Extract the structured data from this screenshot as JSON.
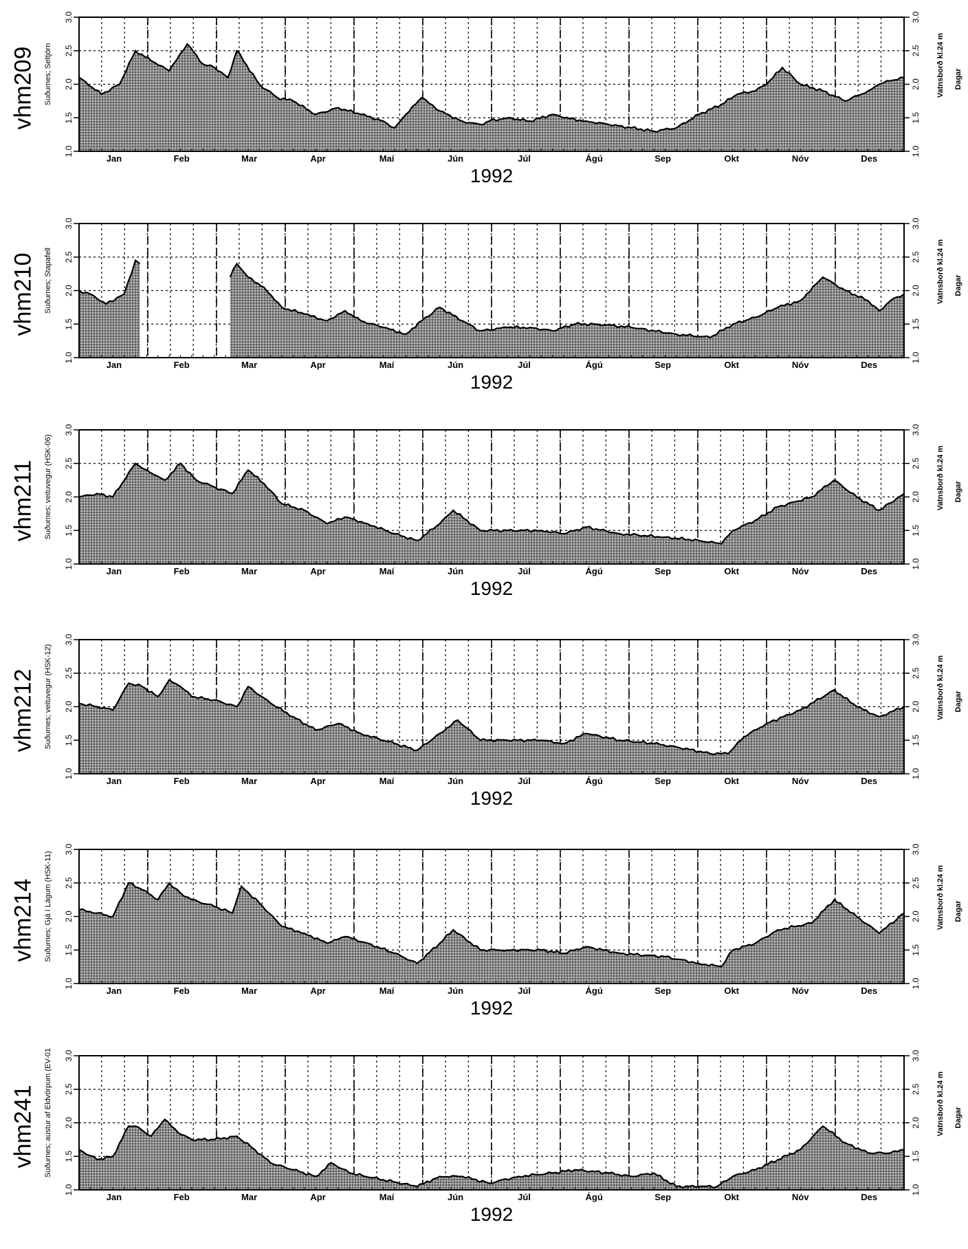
{
  "chart_data": [
    {
      "type": "area",
      "station": "vhm209",
      "ylabel": "Suðurnes; Seltjörn",
      "ylabel_right": "Vatnsborð kl.24 m",
      "xlabel_right": "Dagar",
      "year": "1992",
      "ylim": [
        1.0,
        3.0
      ],
      "yticks": [
        "1.0",
        "1.5",
        "2.0",
        "2.5",
        "3.0"
      ],
      "months": [
        "Jan",
        "Feb",
        "Mar",
        "Apr",
        "Maí",
        "Jún",
        "Júl",
        "Ágú",
        "Sep",
        "Okt",
        "Nóv",
        "Des"
      ],
      "grid": true,
      "series": [
        {
          "x": [
            0,
            10,
            18,
            25,
            32,
            40,
            48,
            55,
            60,
            66,
            70,
            80,
            88,
            95,
            105,
            115,
            125,
            135,
            140,
            145,
            152,
            160,
            170,
            178,
            182,
            190,
            200,
            210,
            215,
            225,
            235,
            245,
            255,
            265,
            275,
            285,
            292,
            300,
            305,
            312,
            320,
            330,
            340,
            350,
            355,
            360,
            366
          ],
          "y": [
            2.1,
            1.85,
            2.0,
            2.5,
            2.35,
            2.2,
            2.6,
            2.3,
            2.25,
            2.1,
            2.5,
            2.0,
            1.8,
            1.75,
            1.55,
            1.65,
            1.55,
            1.45,
            1.35,
            1.55,
            1.8,
            1.6,
            1.45,
            1.4,
            1.45,
            1.5,
            1.45,
            1.55,
            1.5,
            1.45,
            1.4,
            1.35,
            1.3,
            1.35,
            1.55,
            1.7,
            1.85,
            1.9,
            2.0,
            2.25,
            2.0,
            1.9,
            1.75,
            1.9,
            2.0,
            2.05,
            2.1
          ]
        }
      ],
      "gaps": []
    },
    {
      "type": "area",
      "station": "vhm210",
      "ylabel": "Suðurnes; Stapafell",
      "ylabel_right": "Vatnsborð kl.24 m",
      "xlabel_right": "Dagar",
      "year": "1992",
      "ylim": [
        1.0,
        3.0
      ],
      "yticks": [
        "1.0",
        "1.5",
        "2.0",
        "2.5",
        "3.0"
      ],
      "months": [
        "Jan",
        "Feb",
        "Mar",
        "Apr",
        "Maí",
        "Jún",
        "Júl",
        "Ágú",
        "Sep",
        "Okt",
        "Nóv",
        "Des"
      ],
      "grid": true,
      "series": [
        {
          "x": [
            0,
            5,
            12,
            20,
            25,
            27,
            67,
            70,
            75,
            82,
            90,
            100,
            110,
            118,
            125,
            135,
            145,
            152,
            160,
            170,
            178,
            190,
            200,
            210,
            220,
            230,
            245,
            265,
            280,
            290,
            300,
            310,
            320,
            330,
            340,
            350,
            355,
            360,
            366
          ],
          "y": [
            2.0,
            1.95,
            1.8,
            1.95,
            2.45,
            2.4,
            2.2,
            2.4,
            2.2,
            2.05,
            1.75,
            1.65,
            1.55,
            1.7,
            1.55,
            1.45,
            1.35,
            1.55,
            1.75,
            1.55,
            1.4,
            1.45,
            1.45,
            1.4,
            1.5,
            1.5,
            1.45,
            1.35,
            1.3,
            1.5,
            1.6,
            1.75,
            1.85,
            2.2,
            2.0,
            1.85,
            1.7,
            1.85,
            1.95
          ]
        }
      ],
      "gaps": [
        [
          28,
          66
        ]
      ]
    },
    {
      "type": "area",
      "station": "vhm211",
      "ylabel": "Suðurnes; veituvegur (HSK-06)",
      "ylabel_right": "Vatnsborð kl.24 m",
      "xlabel_right": "Dagar",
      "year": "1992",
      "ylim": [
        1.0,
        3.0
      ],
      "yticks": [
        "1.0",
        "1.5",
        "2.0",
        "2.5",
        "3.0"
      ],
      "months": [
        "Jan",
        "Feb",
        "Mar",
        "Apr",
        "Maí",
        "Jún",
        "Júl",
        "Ágú",
        "Sep",
        "Okt",
        "Nóv",
        "Des"
      ],
      "grid": true,
      "series": [
        {
          "x": [
            0,
            8,
            15,
            25,
            30,
            38,
            45,
            52,
            60,
            68,
            75,
            82,
            90,
            100,
            110,
            118,
            128,
            140,
            150,
            160,
            166,
            178,
            190,
            205,
            215,
            225,
            240,
            260,
            275,
            285,
            290,
            300,
            310,
            325,
            335,
            345,
            355,
            366
          ],
          "y": [
            2.0,
            2.05,
            2.0,
            2.5,
            2.4,
            2.25,
            2.5,
            2.25,
            2.15,
            2.05,
            2.4,
            2.2,
            1.9,
            1.8,
            1.6,
            1.7,
            1.6,
            1.45,
            1.35,
            1.6,
            1.8,
            1.5,
            1.5,
            1.5,
            1.45,
            1.55,
            1.45,
            1.4,
            1.35,
            1.3,
            1.5,
            1.65,
            1.85,
            2.0,
            2.25,
            2.0,
            1.8,
            2.05
          ]
        }
      ],
      "gaps": []
    },
    {
      "type": "area",
      "station": "vhm212",
      "ylabel": "Suðurnes; veituvegur (HSK-12)",
      "ylabel_right": "Vatnsborð kl.24 m",
      "xlabel_right": "Dagar",
      "year": "1992",
      "ylim": [
        1.0,
        3.0
      ],
      "yticks": [
        "1.0",
        "1.5",
        "2.0",
        "2.5",
        "3.0"
      ],
      "months": [
        "Jan",
        "Feb",
        "Mar",
        "Apr",
        "Maí",
        "Jún",
        "Júl",
        "Ágú",
        "Sep",
        "Okt",
        "Nóv",
        "Des"
      ],
      "grid": true,
      "series": [
        {
          "x": [
            0,
            8,
            15,
            22,
            28,
            35,
            40,
            45,
            50,
            60,
            70,
            75,
            85,
            95,
            105,
            115,
            125,
            140,
            150,
            160,
            168,
            178,
            190,
            205,
            215,
            225,
            240,
            255,
            265,
            280,
            288,
            295,
            305,
            320,
            335,
            345,
            355,
            366
          ],
          "y": [
            2.05,
            2.0,
            1.95,
            2.35,
            2.3,
            2.15,
            2.4,
            2.3,
            2.15,
            2.1,
            2.0,
            2.3,
            2.05,
            1.85,
            1.65,
            1.75,
            1.6,
            1.45,
            1.35,
            1.6,
            1.8,
            1.5,
            1.5,
            1.5,
            1.45,
            1.6,
            1.5,
            1.45,
            1.4,
            1.3,
            1.3,
            1.55,
            1.75,
            1.95,
            2.25,
            2.0,
            1.85,
            2.0
          ]
        }
      ],
      "gaps": []
    },
    {
      "type": "area",
      "station": "vhm214",
      "ylabel": "Suðurnes; Gjá í Lágum (HSK-11)",
      "ylabel_right": "Vatnsborð kl.24 m",
      "xlabel_right": "Dagar",
      "year": "1992",
      "ylim": [
        1.0,
        3.0
      ],
      "yticks": [
        "1.0",
        "1.5",
        "2.0",
        "2.5",
        "3.0"
      ],
      "months": [
        "Jan",
        "Feb",
        "Mar",
        "Apr",
        "Maí",
        "Jún",
        "Júl",
        "Ágú",
        "Sep",
        "Okt",
        "Nóv",
        "Des"
      ],
      "grid": true,
      "series": [
        {
          "x": [
            0,
            8,
            15,
            22,
            28,
            35,
            40,
            45,
            50,
            60,
            68,
            72,
            80,
            90,
            100,
            110,
            118,
            128,
            140,
            150,
            160,
            166,
            178,
            190,
            205,
            215,
            225,
            240,
            260,
            275,
            285,
            290,
            300,
            310,
            325,
            335,
            345,
            355,
            366
          ],
          "y": [
            2.1,
            2.05,
            2.0,
            2.5,
            2.4,
            2.25,
            2.5,
            2.35,
            2.25,
            2.15,
            2.05,
            2.45,
            2.2,
            1.85,
            1.75,
            1.6,
            1.7,
            1.6,
            1.45,
            1.3,
            1.6,
            1.8,
            1.5,
            1.5,
            1.5,
            1.45,
            1.55,
            1.45,
            1.4,
            1.3,
            1.25,
            1.5,
            1.6,
            1.8,
            1.9,
            2.25,
            2.0,
            1.75,
            2.05
          ]
        }
      ],
      "gaps": []
    },
    {
      "type": "area",
      "station": "vhm241",
      "ylabel": "Suðurnes; austur af Eldvörpum (EV-01",
      "ylabel_right": "Vatnsborð kl.24 m",
      "xlabel_right": "Dagar",
      "year": "1992",
      "ylim": [
        1.0,
        3.0
      ],
      "yticks": [
        "1.0",
        "1.5",
        "2.0",
        "2.5",
        "3.0"
      ],
      "months": [
        "Jan",
        "Feb",
        "Mar",
        "Apr",
        "Maí",
        "Jún",
        "Júl",
        "Ágú",
        "Sep",
        "Okt",
        "Nóv",
        "Des"
      ],
      "grid": true,
      "series": [
        {
          "x": [
            0,
            8,
            15,
            22,
            25,
            32,
            38,
            44,
            50,
            60,
            70,
            78,
            85,
            95,
            105,
            112,
            120,
            135,
            150,
            160,
            170,
            182,
            195,
            210,
            220,
            235,
            245,
            255,
            265,
            275,
            283,
            290,
            300,
            310,
            320,
            330,
            340,
            350,
            360,
            366
          ],
          "y": [
            1.6,
            1.45,
            1.5,
            1.95,
            1.95,
            1.8,
            2.05,
            1.85,
            1.75,
            1.75,
            1.8,
            1.6,
            1.4,
            1.3,
            1.2,
            1.4,
            1.25,
            1.15,
            1.05,
            1.2,
            1.2,
            1.1,
            1.2,
            1.25,
            1.3,
            1.25,
            1.2,
            1.25,
            1.05,
            1.05,
            1.05,
            1.2,
            1.3,
            1.45,
            1.6,
            1.95,
            1.7,
            1.55,
            1.55,
            1.6
          ]
        }
      ],
      "gaps": []
    }
  ]
}
